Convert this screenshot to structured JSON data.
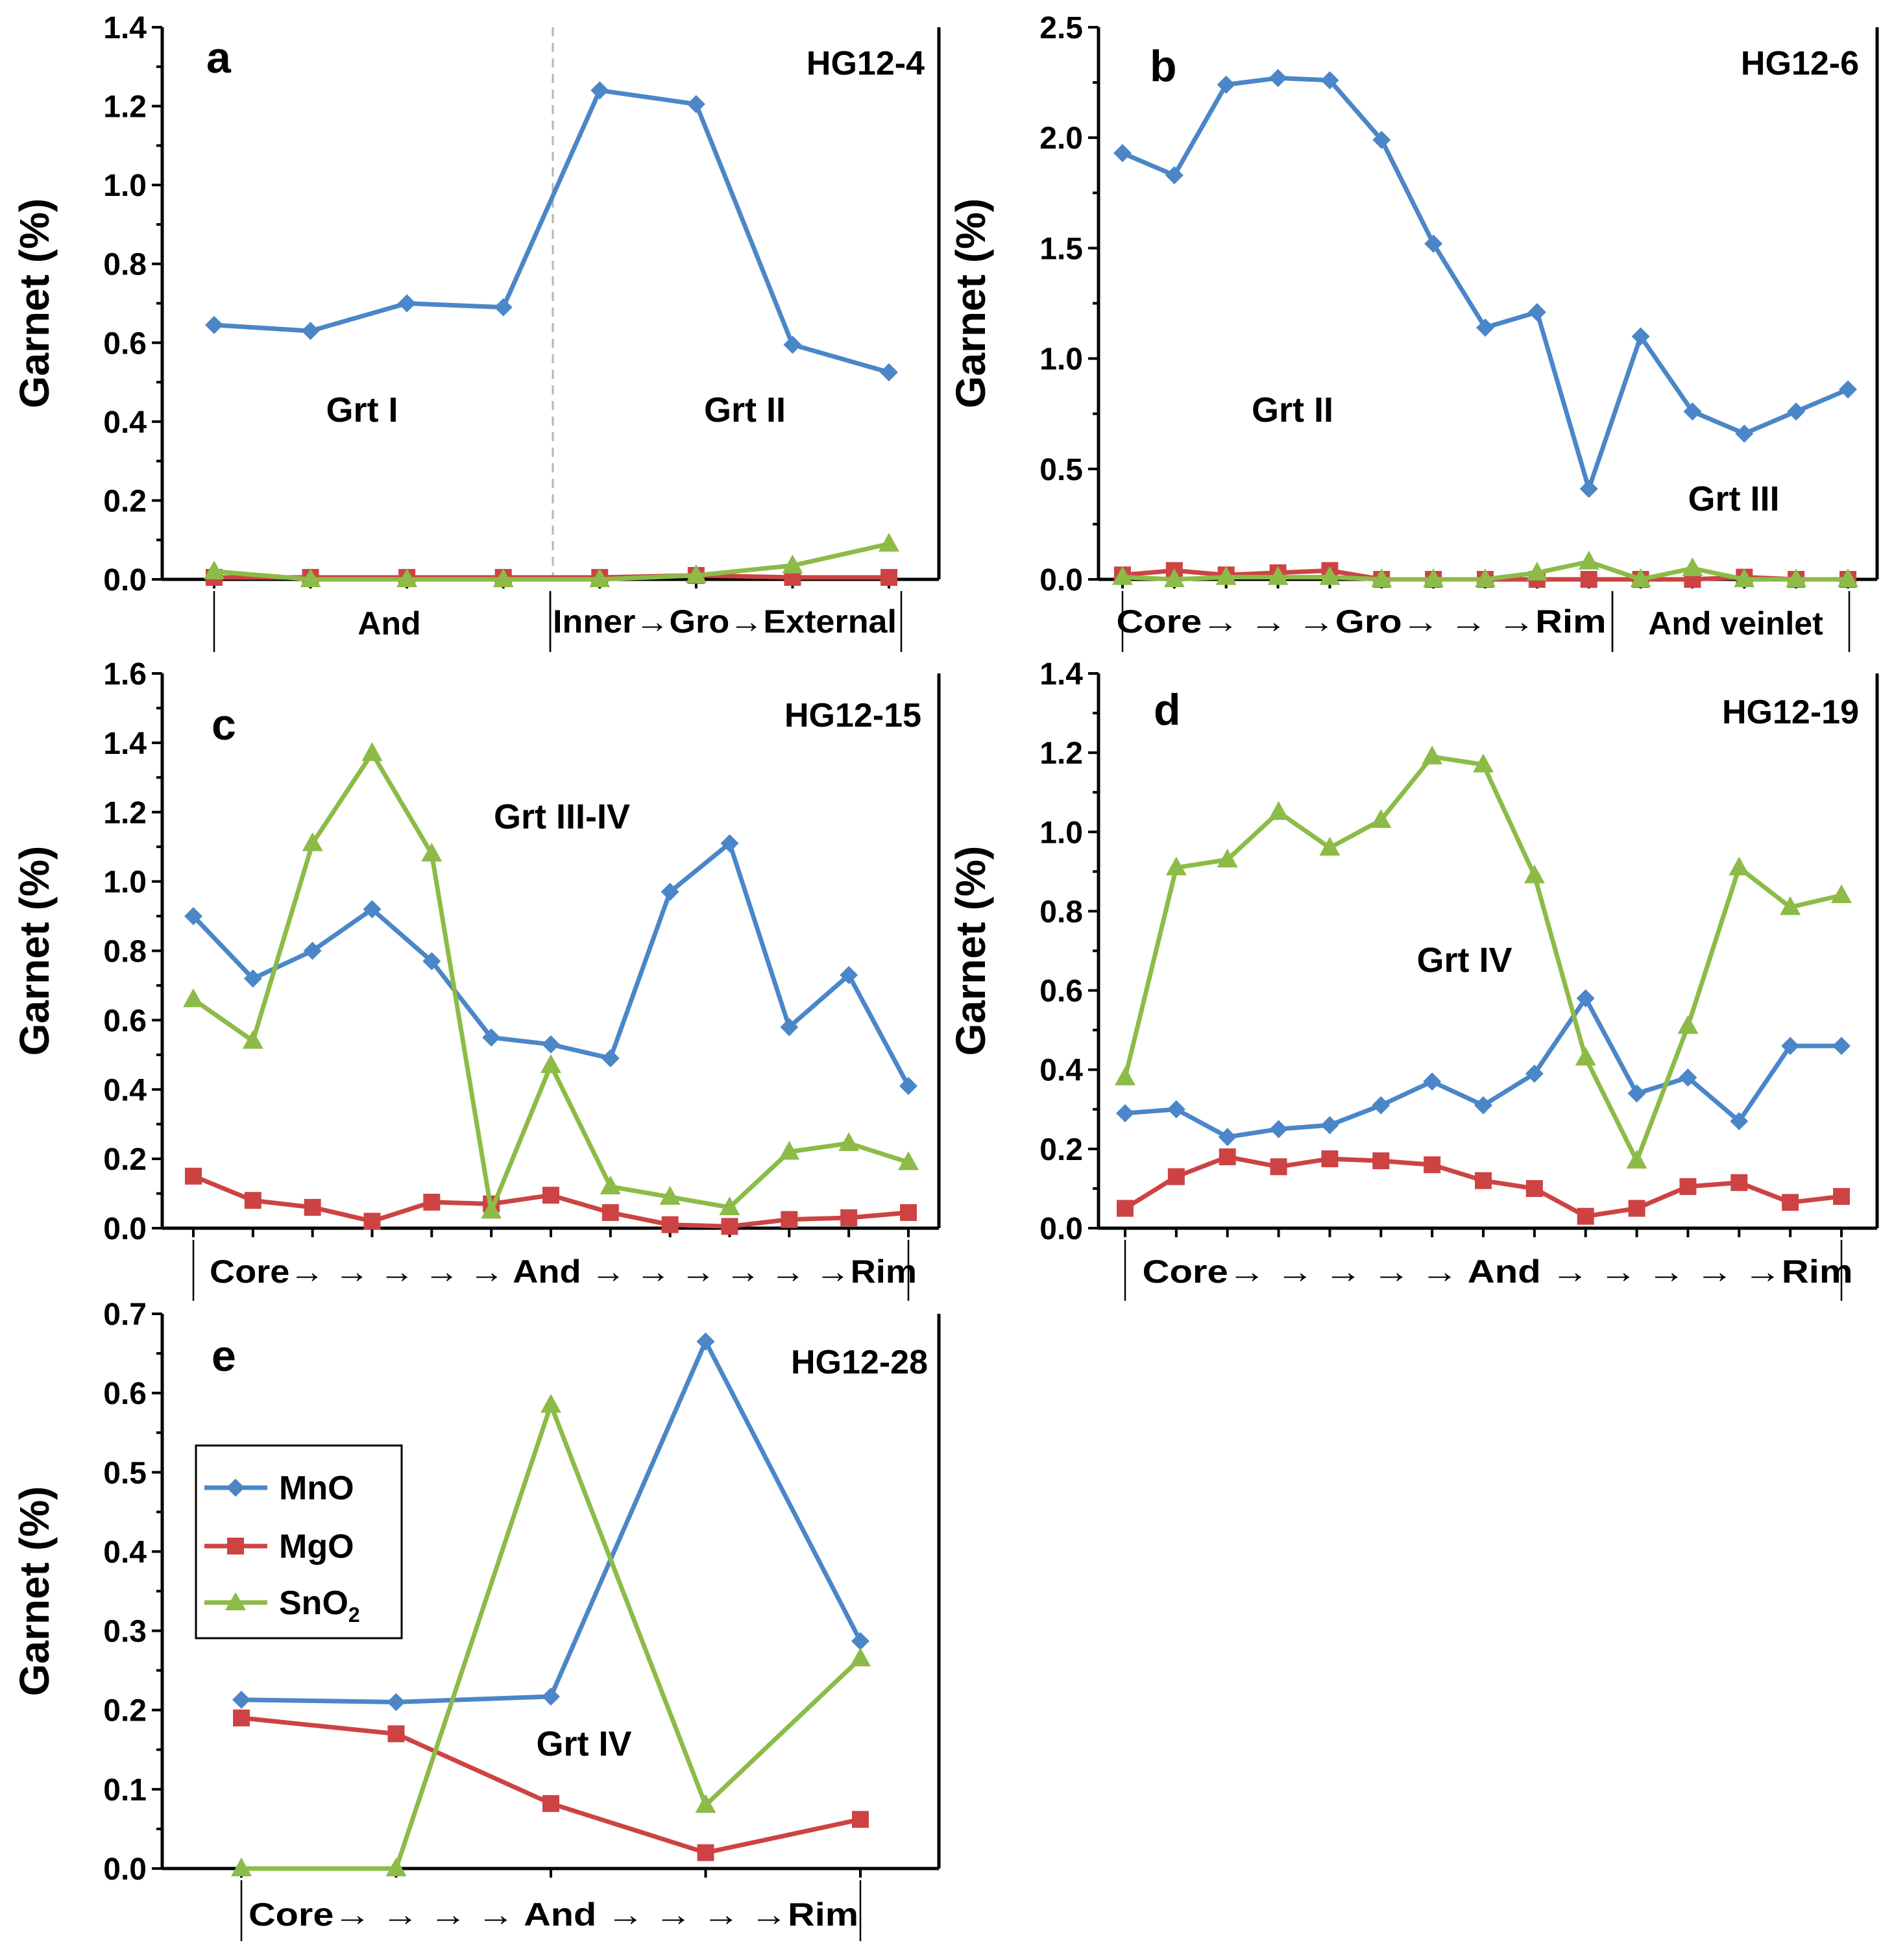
{
  "figure": {
    "series_legend": [
      {
        "name": "MnO",
        "color": "#4a86c8",
        "marker": "diamond"
      },
      {
        "name": "MgO",
        "color": "#cd4343",
        "marker": "square"
      },
      {
        "name": "SnO",
        "subscript": "2",
        "color": "#8cbb47",
        "marker": "triangle"
      }
    ]
  },
  "chart_data": [
    {
      "type": "line",
      "panel": "a",
      "sample": "HG12-4",
      "ylabel": "Garnet (%)",
      "ylim": [
        0,
        1.4
      ],
      "yticks": [
        "0.0",
        "0.2",
        "0.4",
        "0.6",
        "0.8",
        "1.0",
        "1.2",
        "1.4"
      ],
      "x": [
        1,
        2,
        3,
        4,
        5,
        6,
        7,
        8
      ],
      "series": [
        {
          "name": "MnO",
          "values": [
            0.645,
            0.63,
            0.7,
            0.69,
            1.24,
            1.205,
            0.595,
            0.525
          ]
        },
        {
          "name": "MgO",
          "values": [
            0.005,
            0.005,
            0.005,
            0.005,
            0.005,
            0.01,
            0.005,
            0.005
          ]
        },
        {
          "name": "SnO2",
          "values": [
            0.02,
            0.0,
            0.0,
            0.0,
            0.0,
            0.01,
            0.035,
            0.09
          ]
        }
      ],
      "divider_after_point": 4,
      "regions": [
        {
          "label": "Grt I"
        },
        {
          "label": "Grt II"
        }
      ],
      "x_segments": [
        {
          "label": "And"
        },
        {
          "label": "Inner→Gro→External"
        }
      ]
    },
    {
      "type": "line",
      "panel": "b",
      "sample": "HG12-6",
      "ylabel": "Garnet (%)",
      "ylim": [
        0,
        2.5
      ],
      "yticks": [
        "0.0",
        "0.5",
        "1.0",
        "1.5",
        "2.0",
        "2.5"
      ],
      "x": [
        1,
        2,
        3,
        4,
        5,
        6,
        7,
        8,
        9,
        10,
        11,
        12,
        13,
        14,
        15
      ],
      "series": [
        {
          "name": "MnO",
          "values": [
            1.93,
            1.83,
            2.24,
            2.27,
            2.26,
            1.99,
            1.52,
            1.14,
            1.21,
            0.41,
            1.1,
            0.76,
            0.66,
            0.76,
            0.86
          ]
        },
        {
          "name": "MgO",
          "values": [
            0.02,
            0.04,
            0.02,
            0.03,
            0.04,
            0.0,
            0.0,
            0.0,
            0.0,
            0.0,
            0.0,
            0.0,
            0.01,
            0.0,
            0.0
          ]
        },
        {
          "name": "SnO2",
          "values": [
            0.01,
            0.0,
            0.01,
            0.01,
            0.01,
            0.0,
            0.0,
            0.0,
            0.03,
            0.08,
            0.0,
            0.05,
            0.0,
            0.0,
            0.0
          ]
        }
      ],
      "regions": [
        {
          "label": "Grt II"
        },
        {
          "label": "Grt III"
        }
      ],
      "x_segments": [
        {
          "label": "Core→ → →Gro→ → →Rim"
        },
        {
          "label": "And veinlet"
        }
      ]
    },
    {
      "type": "line",
      "panel": "c",
      "sample": "HG12-15",
      "ylabel": "Garnet (%)",
      "ylim": [
        0,
        1.6
      ],
      "yticks": [
        "0.0",
        "0.2",
        "0.4",
        "0.6",
        "0.8",
        "1.0",
        "1.2",
        "1.4",
        "1.6"
      ],
      "x": [
        1,
        2,
        3,
        4,
        5,
        6,
        7,
        8,
        9,
        10,
        11,
        12,
        13
      ],
      "series": [
        {
          "name": "MnO",
          "values": [
            0.9,
            0.72,
            0.8,
            0.92,
            0.77,
            0.55,
            0.53,
            0.49,
            0.97,
            1.11,
            0.58,
            0.73,
            0.41
          ]
        },
        {
          "name": "MgO",
          "values": [
            0.15,
            0.08,
            0.06,
            0.02,
            0.075,
            0.07,
            0.095,
            0.045,
            0.01,
            0.005,
            0.025,
            0.03,
            0.045
          ]
        },
        {
          "name": "SnO2",
          "values": [
            0.66,
            0.54,
            1.11,
            1.37,
            1.08,
            0.05,
            0.47,
            0.12,
            0.09,
            0.06,
            0.22,
            0.245,
            0.19
          ]
        }
      ],
      "regions": [
        {
          "label": "Grt III-IV"
        }
      ],
      "x_segments": [
        {
          "label": "Core→ → → → →  And  → → → → → →Rim"
        }
      ]
    },
    {
      "type": "line",
      "panel": "d",
      "sample": "HG12-19",
      "ylabel": "Garnet (%)",
      "ylim": [
        0,
        1.4
      ],
      "yticks": [
        "0.0",
        "0.2",
        "0.4",
        "0.6",
        "0.8",
        "1.0",
        "1.2",
        "1.4"
      ],
      "x": [
        1,
        2,
        3,
        4,
        5,
        6,
        7,
        8,
        9,
        10,
        11,
        12,
        13,
        14,
        15
      ],
      "series": [
        {
          "name": "MnO",
          "values": [
            0.29,
            0.3,
            0.23,
            0.25,
            0.26,
            0.31,
            0.37,
            0.31,
            0.39,
            0.58,
            0.34,
            0.38,
            0.27,
            0.46,
            0.46
          ]
        },
        {
          "name": "MgO",
          "values": [
            0.05,
            0.13,
            0.18,
            0.155,
            0.175,
            0.17,
            0.16,
            0.12,
            0.1,
            0.03,
            0.05,
            0.105,
            0.115,
            0.065,
            0.08
          ]
        },
        {
          "name": "SnO2",
          "values": [
            0.38,
            0.91,
            0.93,
            1.05,
            0.96,
            1.03,
            1.19,
            1.17,
            0.89,
            0.43,
            0.17,
            0.51,
            0.91,
            0.81,
            0.84
          ]
        }
      ],
      "regions": [
        {
          "label": "Grt IV"
        }
      ],
      "x_segments": [
        {
          "label": "Core→ → → → →  And  → → → → →Rim"
        }
      ]
    },
    {
      "type": "line",
      "panel": "e",
      "sample": "HG12-28",
      "ylabel": "Garnet (%)",
      "ylim": [
        0,
        0.7
      ],
      "yticks": [
        "0.0",
        "0.1",
        "0.2",
        "0.3",
        "0.4",
        "0.5",
        "0.6",
        "0.7"
      ],
      "x": [
        1,
        2,
        3,
        4,
        5
      ],
      "series": [
        {
          "name": "MnO",
          "values": [
            0.213,
            0.21,
            0.217,
            0.665,
            0.287
          ]
        },
        {
          "name": "MgO",
          "values": [
            0.19,
            0.17,
            0.082,
            0.02,
            0.062
          ]
        },
        {
          "name": "SnO2",
          "values": [
            0.0,
            0.0,
            0.585,
            0.08,
            0.265
          ]
        }
      ],
      "regions": [
        {
          "label": "Grt IV"
        }
      ],
      "x_segments": [
        {
          "label": "Core→ → → →  And → → → →Rim"
        }
      ],
      "legend": "upper-left"
    }
  ]
}
